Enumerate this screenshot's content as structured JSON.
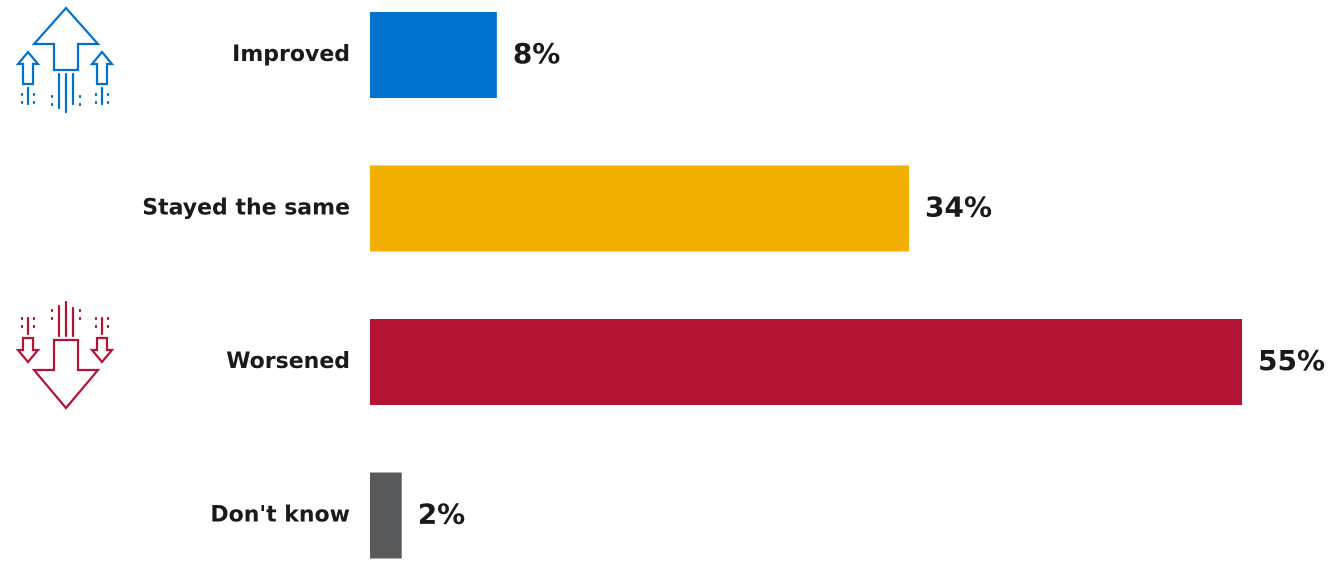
{
  "chart_data": {
    "type": "bar",
    "orientation": "horizontal",
    "categories": [
      "Improved",
      "Stayed the same",
      "Worsened",
      "Don't know"
    ],
    "values": [
      8,
      34,
      55,
      2
    ],
    "value_labels": [
      "8%",
      "34%",
      "55%",
      "2%"
    ],
    "colors": [
      "#0072CE",
      "#F2AF00",
      "#B41434",
      "#58595B"
    ],
    "xlim": [
      0,
      55
    ],
    "grid": false,
    "legend": "none"
  },
  "icons": {
    "improved": {
      "name": "arrows-up-icon",
      "color": "#0072CE"
    },
    "worsened": {
      "name": "arrows-down-icon",
      "color": "#B41434"
    }
  }
}
